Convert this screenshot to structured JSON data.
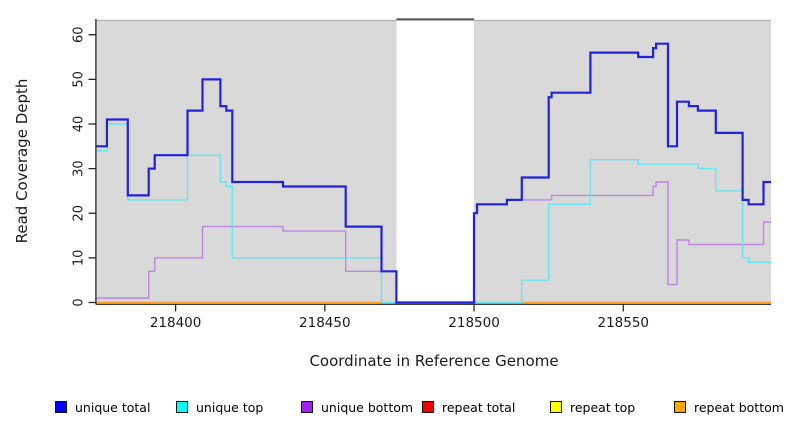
{
  "chart_data": {
    "type": "step-line",
    "xlabel": "Coordinate in Reference Genome",
    "ylabel": "Read Coverage Depth",
    "xlim": [
      218373.5,
      218599.5
    ],
    "ylim": [
      0,
      63.3
    ],
    "x_ticks": [
      218400,
      218450,
      218500,
      218550
    ],
    "y_ticks": [
      0,
      10,
      20,
      30,
      40,
      50,
      60
    ],
    "grid": false,
    "panel_color": "#d9d9d9",
    "covered_regions": [
      {
        "x_start": 218373.5,
        "x_end": 218474
      },
      {
        "x_start": 218500,
        "x_end": 218599.5
      }
    ],
    "uncovered_gap": {
      "x_start": 218474,
      "x_end": 218500
    },
    "series": [
      {
        "name": "unique total",
        "color": "#2222dd",
        "width": 2.2,
        "points": [
          [
            218373.5,
            35
          ],
          [
            218377,
            41
          ],
          [
            218384,
            24
          ],
          [
            218391,
            30
          ],
          [
            218393,
            33
          ],
          [
            218404,
            43
          ],
          [
            218409,
            50
          ],
          [
            218415,
            44
          ],
          [
            218417,
            43
          ],
          [
            218419,
            27
          ],
          [
            218436,
            26
          ],
          [
            218457,
            17
          ],
          [
            218469,
            7
          ],
          [
            218474,
            0
          ],
          [
            218500,
            20
          ],
          [
            218501,
            22
          ],
          [
            218511,
            23
          ],
          [
            218516,
            28
          ],
          [
            218525,
            46
          ],
          [
            218526,
            47
          ],
          [
            218539,
            56
          ],
          [
            218555,
            55
          ],
          [
            218560,
            57
          ],
          [
            218561,
            58
          ],
          [
            218565,
            35
          ],
          [
            218568,
            45
          ],
          [
            218572,
            44
          ],
          [
            218575,
            43
          ],
          [
            218581,
            38
          ],
          [
            218590,
            23
          ],
          [
            218592,
            22
          ],
          [
            218597,
            27
          ],
          [
            218599.5,
            27
          ]
        ]
      },
      {
        "name": "unique top",
        "color": "#6ae4ef",
        "width": 1.4,
        "points": [
          [
            218373.5,
            34
          ],
          [
            218377,
            40
          ],
          [
            218384,
            23
          ],
          [
            218404,
            33
          ],
          [
            218415,
            27
          ],
          [
            218417,
            26
          ],
          [
            218419,
            10
          ],
          [
            218469,
            0
          ],
          [
            218516,
            5
          ],
          [
            218525,
            22
          ],
          [
            218539,
            32
          ],
          [
            218555,
            31
          ],
          [
            218575,
            30
          ],
          [
            218581,
            25
          ],
          [
            218590,
            10
          ],
          [
            218592,
            9
          ],
          [
            218599.5,
            9
          ]
        ]
      },
      {
        "name": "unique bottom",
        "color": "#bd86e0",
        "width": 1.4,
        "points": [
          [
            218373.5,
            1
          ],
          [
            218391,
            7
          ],
          [
            218393,
            10
          ],
          [
            218409,
            17
          ],
          [
            218436,
            16
          ],
          [
            218457,
            7
          ],
          [
            218474,
            0
          ],
          [
            218500,
            20
          ],
          [
            218501,
            22
          ],
          [
            218511,
            23
          ],
          [
            218526,
            24
          ],
          [
            218560,
            26
          ],
          [
            218561,
            27
          ],
          [
            218565,
            4
          ],
          [
            218568,
            14
          ],
          [
            218572,
            13
          ],
          [
            218597,
            18
          ],
          [
            218599.5,
            18
          ]
        ]
      },
      {
        "name": "repeat total",
        "color": "#ee0000",
        "width": 1.0,
        "points": [
          [
            218373.5,
            0
          ],
          [
            218599.5,
            0
          ]
        ]
      },
      {
        "name": "repeat top",
        "color": "#f5ec00",
        "width": 1.0,
        "points": [
          [
            218373.5,
            0
          ],
          [
            218599.5,
            0
          ]
        ]
      },
      {
        "name": "repeat bottom",
        "color": "#ff9d1e",
        "width": 1.6,
        "points": [
          [
            218373.5,
            0
          ],
          [
            218599.5,
            0
          ]
        ]
      }
    ],
    "draw_order": [
      3,
      4,
      5,
      2,
      1,
      0
    ],
    "legend_position": "bottom"
  },
  "legend": {
    "items": [
      {
        "label": "unique total",
        "color": "#0000ff"
      },
      {
        "label": "unique top",
        "color": "#00ffff"
      },
      {
        "label": "unique bottom",
        "color": "#a020f0"
      },
      {
        "label": "repeat total",
        "color": "#ee0000"
      },
      {
        "label": "repeat top",
        "color": "#ffff00"
      },
      {
        "label": "repeat bottom",
        "color": "#ffa500"
      }
    ]
  }
}
